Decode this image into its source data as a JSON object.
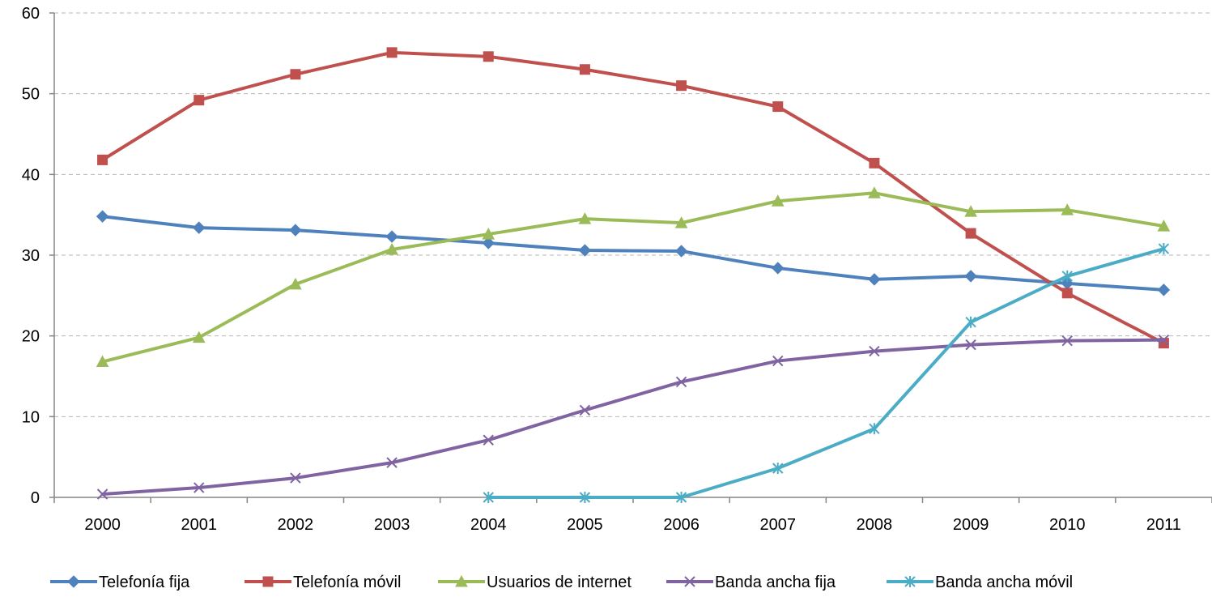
{
  "chart_data": {
    "type": "line",
    "title": "",
    "xlabel": "",
    "ylabel": "",
    "x": [
      "2000",
      "2001",
      "2002",
      "2003",
      "2004",
      "2005",
      "2006",
      "2007",
      "2008",
      "2009",
      "2010",
      "2011"
    ],
    "ylim": [
      0,
      60
    ],
    "yticks": [
      "0",
      "10",
      "20",
      "30",
      "40",
      "50",
      "60"
    ],
    "grid": "horizontal dashed",
    "legend_position": "bottom",
    "series": [
      {
        "name": "Telefonía fija",
        "color": "#4f81bd",
        "marker": "diamond",
        "values": [
          34.8,
          33.4,
          33.1,
          32.3,
          31.5,
          30.6,
          30.5,
          28.4,
          27.0,
          27.4,
          26.5,
          25.7
        ]
      },
      {
        "name": "Telefonía móvil",
        "color": "#c0504d",
        "marker": "square",
        "values": [
          41.8,
          49.2,
          52.4,
          55.1,
          54.6,
          53.0,
          51.0,
          48.4,
          41.4,
          32.7,
          25.3,
          19.1
        ]
      },
      {
        "name": "Usuarios de internet",
        "color": "#9bbb59",
        "marker": "triangle",
        "values": [
          16.8,
          19.8,
          26.4,
          30.7,
          32.6,
          34.5,
          34.0,
          36.7,
          37.7,
          35.4,
          35.6,
          33.6
        ]
      },
      {
        "name": "Banda ancha fija",
        "color": "#8064a2",
        "marker": "x",
        "values": [
          0.4,
          1.2,
          2.4,
          4.3,
          7.1,
          10.8,
          14.3,
          16.9,
          18.1,
          18.9,
          19.4,
          19.5
        ]
      },
      {
        "name": "Banda ancha móvil",
        "color": "#4bacc6",
        "marker": "asterisk",
        "values": [
          null,
          null,
          null,
          null,
          0.0,
          0.0,
          0.0,
          3.6,
          8.5,
          21.7,
          27.4,
          30.8
        ]
      }
    ]
  }
}
